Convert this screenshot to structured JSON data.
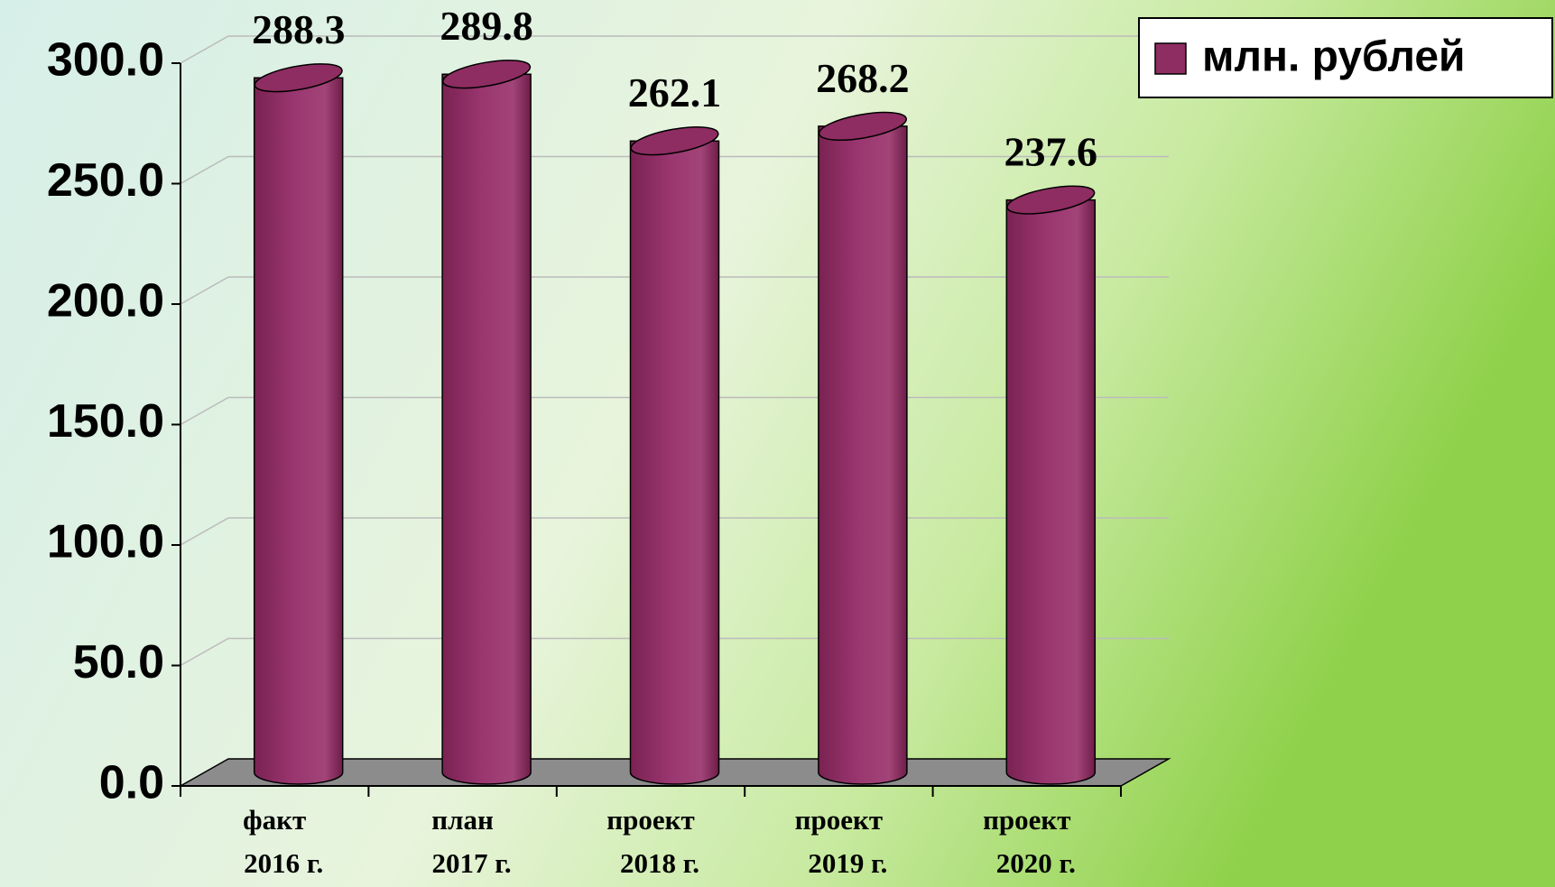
{
  "chart_data": {
    "type": "bar",
    "categories": [
      [
        "факт",
        "2016 г."
      ],
      [
        "план",
        "2017 г."
      ],
      [
        "проект",
        "2018 г."
      ],
      [
        "проект",
        "2019 г."
      ],
      [
        "проект",
        "2020 г."
      ]
    ],
    "series": [
      {
        "name": "млн. рублей",
        "color": "#8e2d62",
        "values": [
          288.3,
          289.8,
          262.1,
          268.2,
          237.6
        ]
      }
    ],
    "ylim": [
      0,
      300
    ],
    "yticks": [
      {
        "value": 0,
        "label": "0.0"
      },
      {
        "value": 50,
        "label": "50.0"
      },
      {
        "value": 100,
        "label": "100.0"
      },
      {
        "value": 150,
        "label": "150.0"
      },
      {
        "value": 200,
        "label": "200.0"
      },
      {
        "value": 250,
        "label": "250.0"
      },
      {
        "value": 300,
        "label": "300.0"
      }
    ],
    "grid": true,
    "legend": "top-right"
  }
}
